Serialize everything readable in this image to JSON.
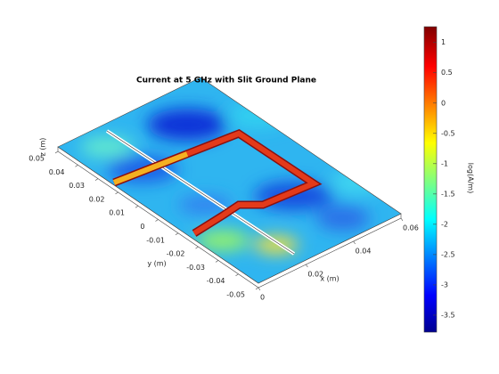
{
  "chart_data": {
    "type": "surface",
    "title": "Current at 5 GHz with Slit Ground Plane",
    "xlabel": "x (m)",
    "ylabel": "y (m)",
    "zlabel": "z (m)",
    "xlim": [
      0,
      0.06
    ],
    "xticks": [
      0,
      0.02,
      0.04,
      0.06
    ],
    "ylim": [
      -0.05,
      0.05
    ],
    "yticks": [
      -0.05,
      -0.04,
      -0.03,
      -0.02,
      -0.01,
      0,
      0.01,
      0.02,
      0.03,
      0.04,
      0.05
    ],
    "colorbar": {
      "label": "log(A/m)",
      "clim": [
        -3.78,
        1.26
      ],
      "ticks": [
        -3.5,
        -3,
        -2.5,
        -2,
        -1.5,
        -1,
        -0.5,
        0,
        0.5,
        1
      ]
    }
  }
}
